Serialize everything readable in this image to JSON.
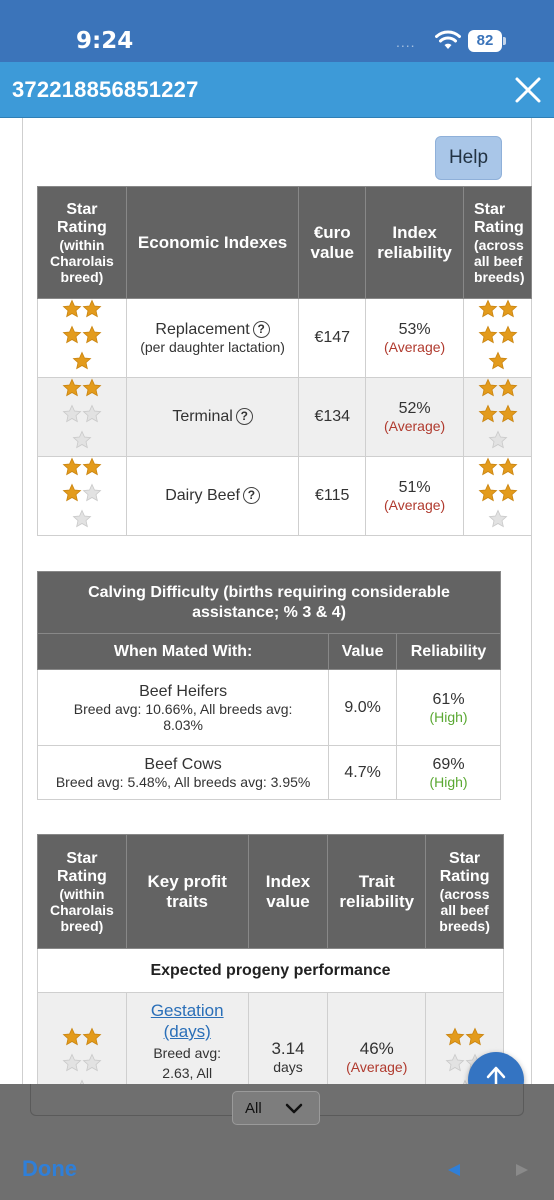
{
  "status_bar": {
    "time": "9:24",
    "dots": "....",
    "battery": "82"
  },
  "title_bar": {
    "title": "372218856851227"
  },
  "help_label": "Help",
  "econ_table": {
    "headers": {
      "star_within": [
        "Star",
        "Rating",
        "(within",
        "Charolais",
        "breed)"
      ],
      "indexes": "Economic Indexes",
      "euro": [
        "€uro",
        "value"
      ],
      "reliability": [
        "Index",
        "reliability"
      ],
      "star_across": [
        "Star",
        "Rating",
        "(across",
        "all beef",
        "breeds)"
      ]
    },
    "rows": [
      {
        "name": "Replacement",
        "sub": "(per daughter lactation)",
        "value": "€147",
        "rel": "53%",
        "rel_label": "(Average)",
        "stars_within": 5,
        "stars_across": 5
      },
      {
        "name": "Terminal",
        "sub": "",
        "value": "€134",
        "rel": "52%",
        "rel_label": "(Average)",
        "stars_within": 2,
        "stars_across": 4
      },
      {
        "name": "Dairy Beef",
        "sub": "",
        "value": "€115",
        "rel": "51%",
        "rel_label": "(Average)",
        "stars_within": 3,
        "stars_across": 4
      }
    ]
  },
  "calving_table": {
    "title": "Calving Difficulty (births requiring considerable assistance; % 3 & 4)",
    "col_mated": "When Mated With:",
    "col_value": "Value",
    "col_rel": "Reliability",
    "rows": [
      {
        "name": "Beef Heifers",
        "avg": "Breed avg: 10.66%, All breeds avg: 8.03%",
        "value": "9.0%",
        "rel": "61%",
        "rel_label": "(High)"
      },
      {
        "name": "Beef Cows",
        "avg": "Breed avg: 5.48%, All breeds avg: 3.95%",
        "value": "4.7%",
        "rel": "69%",
        "rel_label": "(High)"
      }
    ]
  },
  "profit_table": {
    "headers": {
      "star_within": [
        "Star",
        "Rating",
        "(within",
        "Charolais",
        "breed)"
      ],
      "traits": [
        "Key profit",
        "traits"
      ],
      "index_value": [
        "Index",
        "value"
      ],
      "trait_rel": [
        "Trait",
        "reliability"
      ],
      "star_across": [
        "Star",
        "Rating",
        "(across",
        "all beef",
        "breeds)"
      ]
    },
    "section": "Expected progeny performance",
    "rows": [
      {
        "name": "Gestation (days)",
        "avg": "Breed avg: 2.63, All",
        "value": "3.14",
        "unit": "days",
        "rel": "46%",
        "rel_label": "(Average)",
        "stars_within": 2,
        "stars_across": 2
      }
    ]
  },
  "bottom_bar": {
    "select_value": "All",
    "done_label": "Done"
  },
  "colors": {
    "star_gold": "#e39b1c",
    "star_empty": "#e2e2e2",
    "header_gray": "#636363",
    "status_blue": "#3b74ba",
    "title_blue": "#3d9ad8"
  }
}
